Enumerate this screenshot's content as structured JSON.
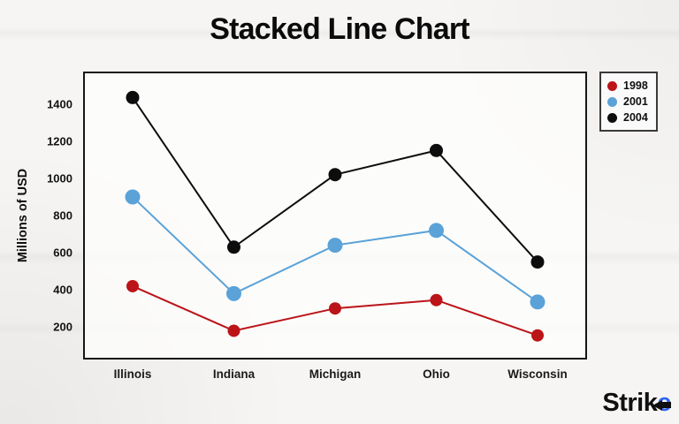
{
  "title": "Stacked Line Chart",
  "chart_data": {
    "type": "line",
    "title": "Stacked Line Chart",
    "categories": [
      "Illinois",
      "Indiana",
      "Michigan",
      "Ohio",
      "Wisconsin"
    ],
    "series": [
      {
        "name": "1998",
        "color": "#bb1419",
        "values": [
          420,
          180,
          300,
          345,
          155
        ],
        "point_radius": 7
      },
      {
        "name": "2001",
        "color": "#5aa2d8",
        "values": [
          900,
          380,
          640,
          720,
          335
        ],
        "point_radius": 8.5
      },
      {
        "name": "2004",
        "color": "#0d0d0d",
        "values": [
          1435,
          630,
          1020,
          1150,
          550
        ],
        "point_radius": 7.5
      }
    ],
    "xlabel": "",
    "ylabel": "Millions of USD",
    "y_ticks": [
      200,
      400,
      600,
      800,
      1000,
      1200,
      1400
    ],
    "value_range": [
      30,
      1570
    ],
    "grid": false,
    "legend_position": "top-right",
    "plot_border_color": "#161616"
  },
  "logo": {
    "parts": [
      "Stri",
      "k",
      "e"
    ]
  }
}
